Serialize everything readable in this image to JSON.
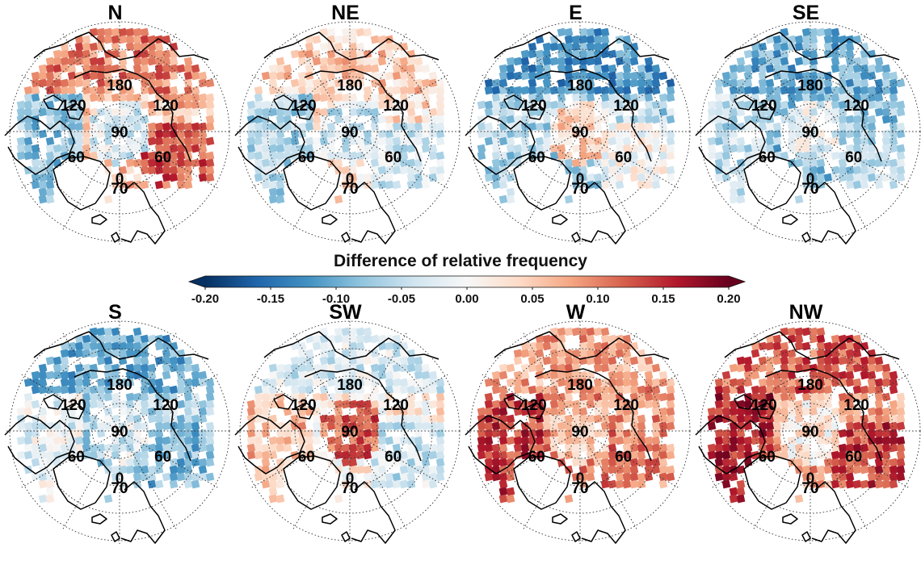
{
  "colorbar": {
    "title": "Difference of relative frequency",
    "ticks": [
      "-0.20",
      "-0.15",
      "-0.10",
      "-0.05",
      "0.00",
      "0.05",
      "0.10",
      "0.15",
      "0.20"
    ],
    "range": [
      -0.2,
      0.2
    ],
    "colors": [
      "#053061",
      "#2166ac",
      "#4393c3",
      "#92c5de",
      "#d1e5f0",
      "#f7f7f7",
      "#fddbc7",
      "#f4a582",
      "#d6604d",
      "#b2182b",
      "#67001f"
    ]
  },
  "map_labels": {
    "lon_180": "180",
    "lon_120_left": "120",
    "lon_120_right": "120",
    "lat_90": "90",
    "lon_60_left": "60",
    "lon_60_right": "60",
    "lon_0": "0",
    "lat_70": "70"
  },
  "panels": [
    {
      "title": "N",
      "pattern": {
        "base": 0.06,
        "asia": 0.1,
        "america": -0.08,
        "europe": 0.12,
        "center": -0.03
      }
    },
    {
      "title": "NE",
      "pattern": {
        "base": 0.03,
        "asia": 0.05,
        "america": -0.06,
        "europe": -0.03,
        "center": -0.04
      }
    },
    {
      "title": "E",
      "pattern": {
        "base": -0.06,
        "asia": -0.12,
        "america": -0.06,
        "europe": 0.0,
        "center": 0.04
      }
    },
    {
      "title": "SE",
      "pattern": {
        "base": -0.08,
        "asia": -0.1,
        "america": -0.05,
        "europe": -0.06,
        "center": -0.02
      }
    },
    {
      "title": "S",
      "pattern": {
        "base": -0.06,
        "asia": -0.1,
        "america": -0.02,
        "europe": -0.09,
        "center": -0.03
      }
    },
    {
      "title": "SW",
      "pattern": {
        "base": 0.02,
        "asia": -0.03,
        "america": 0.06,
        "europe": -0.04,
        "center": 0.12
      }
    },
    {
      "title": "W",
      "pattern": {
        "base": 0.09,
        "asia": 0.08,
        "america": 0.14,
        "europe": 0.1,
        "center": 0.06
      }
    },
    {
      "title": "NW",
      "pattern": {
        "base": 0.08,
        "asia": 0.12,
        "america": 0.16,
        "europe": 0.14,
        "center": 0.02
      }
    }
  ]
}
